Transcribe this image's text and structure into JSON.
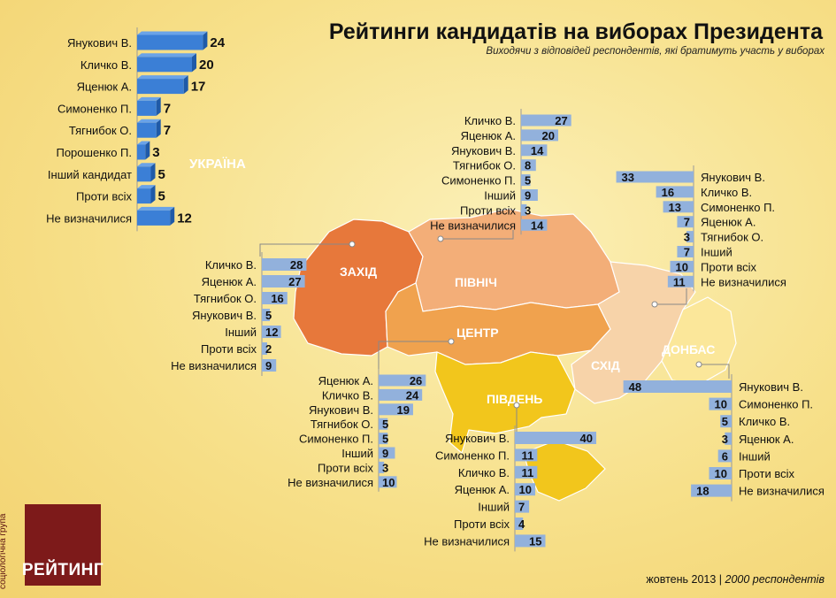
{
  "title": "Рейтинги кандидатів на виборах Президента",
  "subtitle": "Виходячи з відповідей респондентів, які братимуть участь у виборах",
  "footer": {
    "date": "жовтень 2013",
    "sep": "|",
    "respondents": "2000 респондентів"
  },
  "logo": {
    "name": "РЕЙТИНГ",
    "side": "соціологічна група"
  },
  "colors": {
    "bar": "#92b1dc",
    "ukraine_bar": "#3b7fd6",
    "zahid": "#e7783b",
    "pivnich": "#f3ae78",
    "tsentr": "#f0a24e",
    "pivden": "#f2c61c",
    "skhid": "#f7d3a9",
    "donbas": "#fbe79a"
  },
  "regions": {
    "ukraine": "УКРАЇНА",
    "zahid": "ЗАХІД",
    "pivnich": "ПІВНІЧ",
    "tsentr": "ЦЕНТР",
    "pivden": "ПІВДЕНЬ",
    "skhid": "СХІД",
    "donbas": "ДОНБАС"
  },
  "chart_data": [
    {
      "type": "bar",
      "region": "УКРАЇНА",
      "categories": [
        "Янукович В.",
        "Кличко В.",
        "Яценюк А.",
        "Симоненко П.",
        "Тягнибок О.",
        "Порошенко П.",
        "Інший кандидат",
        "Проти всіх",
        "Не визначилися"
      ],
      "values": [
        24,
        20,
        17,
        7,
        7,
        3,
        5,
        5,
        12
      ]
    },
    {
      "type": "bar",
      "region": "ЗАХІД",
      "categories": [
        "Кличко В.",
        "Яценюк А.",
        "Тягнибок О.",
        "Янукович В.",
        "Інший",
        "Проти всіх",
        "Не визначилися"
      ],
      "values": [
        28,
        27,
        16,
        5,
        12,
        2,
        9
      ]
    },
    {
      "type": "bar",
      "region": "ПІВНІЧ",
      "categories": [
        "Кличко В.",
        "Яценюк А.",
        "Янукович В.",
        "Тягнибок О.",
        "Симоненко П.",
        "Інший",
        "Проти всіх",
        "Не визначилися"
      ],
      "values": [
        27,
        20,
        14,
        8,
        5,
        9,
        3,
        14
      ]
    },
    {
      "type": "bar",
      "region": "СХІД",
      "categories": [
        "Янукович В.",
        "Кличко В.",
        "Симоненко П.",
        "Яценюк А.",
        "Тягнибок О.",
        "Інший",
        "Проти всіх",
        "Не визначилися"
      ],
      "values": [
        33,
        16,
        13,
        7,
        3,
        7,
        10,
        11
      ]
    },
    {
      "type": "bar",
      "region": "ЦЕНТР",
      "categories": [
        "Яценюк А.",
        "Кличко В.",
        "Янукович В.",
        "Тягнибок О.",
        "Симоненко П.",
        "Інший",
        "Проти всіх",
        "Не визначилися"
      ],
      "values": [
        26,
        24,
        19,
        5,
        5,
        9,
        3,
        10
      ]
    },
    {
      "type": "bar",
      "region": "ПІВДЕНЬ",
      "categories": [
        "Янукович В.",
        "Симоненко П.",
        "Кличко В.",
        "Яценюк А.",
        "Інший",
        "Проти всіх",
        "Не визначилися"
      ],
      "values": [
        40,
        11,
        11,
        10,
        7,
        4,
        15
      ]
    },
    {
      "type": "bar",
      "region": "ДОНБАС",
      "categories": [
        "Янукович В.",
        "Симоненко П.",
        "Кличко В.",
        "Яценюк А.",
        "Інший",
        "Проти всіх",
        "Не визначилися"
      ],
      "values": [
        48,
        10,
        5,
        3,
        6,
        10,
        18
      ]
    }
  ]
}
